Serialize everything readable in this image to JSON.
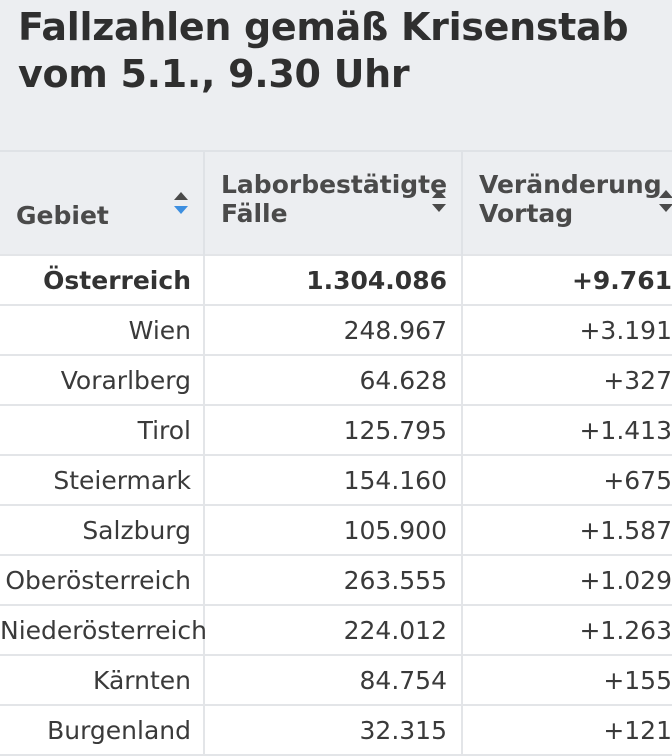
{
  "title": "Fallzahlen gemäß Krisenstab vom 5.1., 9.30 Uhr",
  "columns": [
    {
      "label": "Gebiet",
      "sort_state": "ascending-active"
    },
    {
      "label": "Laborbestätigte Fälle",
      "sort_state": "none"
    },
    {
      "label": "Veränderung Vortag",
      "sort_state": "none"
    }
  ],
  "rows": [
    {
      "gebiet": "Österreich",
      "faelle": "1.304.086",
      "veraenderung": "+9.761",
      "total": true
    },
    {
      "gebiet": "Wien",
      "faelle": "248.967",
      "veraenderung": "+3.191"
    },
    {
      "gebiet": "Vorarlberg",
      "faelle": "64.628",
      "veraenderung": "+327"
    },
    {
      "gebiet": "Tirol",
      "faelle": "125.795",
      "veraenderung": "+1.413"
    },
    {
      "gebiet": "Steiermark",
      "faelle": "154.160",
      "veraenderung": "+675"
    },
    {
      "gebiet": "Salzburg",
      "faelle": "105.900",
      "veraenderung": "+1.587"
    },
    {
      "gebiet": "Oberösterreich",
      "faelle": "263.555",
      "veraenderung": "+1.029"
    },
    {
      "gebiet": "Niederösterreich",
      "faelle": "224.012",
      "veraenderung": "+1.263"
    },
    {
      "gebiet": "Kärnten",
      "faelle": "84.754",
      "veraenderung": "+155"
    },
    {
      "gebiet": "Burgenland",
      "faelle": "32.315",
      "veraenderung": "+121"
    }
  ],
  "colors": {
    "header_bg": "#eceef1",
    "sort_active": "#3d8fe0",
    "sort_inactive": "#4a4a4a"
  }
}
